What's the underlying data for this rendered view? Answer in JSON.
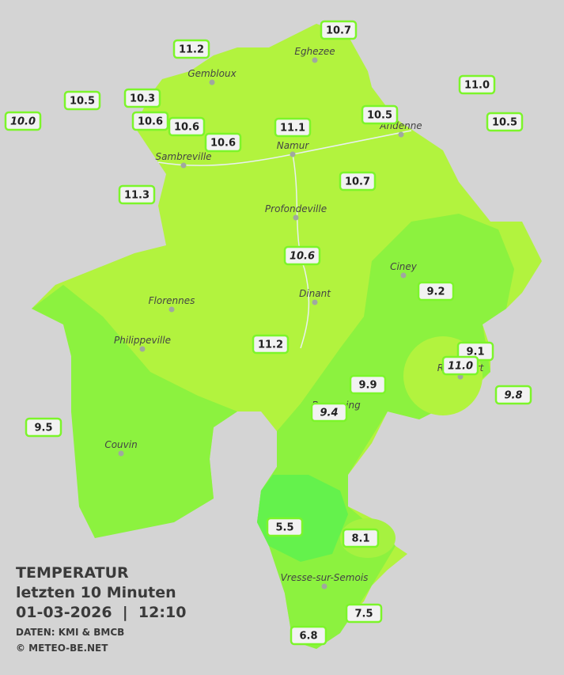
{
  "title": {
    "line1": "TEMPERATUR",
    "line2": "letzten 10 Minuten",
    "line3": "01-03-2026  |  12:10",
    "line4": "DATEN: KMI & BMCB",
    "line5": "© METEO-BE.NET"
  },
  "cities": [
    "Eghezee",
    "Gembloux",
    "Andenne",
    "Namur",
    "Sambreville",
    "Profondeville",
    "Ciney",
    "Dinant",
    "Florennes",
    "Philippeville",
    "Rochefort",
    "Beauraing",
    "Couvin",
    "Vresse-sur-Semois"
  ],
  "stations": [
    {
      "label": "10.7",
      "italic": false
    },
    {
      "label": "11.2",
      "italic": false
    },
    {
      "label": "10.5",
      "italic": false
    },
    {
      "label": "10.3",
      "italic": false
    },
    {
      "label": "10.0",
      "italic": true
    },
    {
      "label": "10.6",
      "italic": false
    },
    {
      "label": "10.6",
      "italic": false
    },
    {
      "label": "10.6",
      "italic": false
    },
    {
      "label": "11.1",
      "italic": false
    },
    {
      "label": "10.5",
      "italic": false
    },
    {
      "label": "11.0",
      "italic": false
    },
    {
      "label": "10.5",
      "italic": false
    },
    {
      "label": "10.7",
      "italic": false
    },
    {
      "label": "11.3",
      "italic": false
    },
    {
      "label": "10.6",
      "italic": true
    },
    {
      "label": "9.2",
      "italic": false
    },
    {
      "label": "11.2",
      "italic": false
    },
    {
      "label": "9.1",
      "italic": false
    },
    {
      "label": "11.0",
      "italic": true
    },
    {
      "label": "9.8",
      "italic": true
    },
    {
      "label": "9.9",
      "italic": false
    },
    {
      "label": "9.4",
      "italic": true
    },
    {
      "label": "9.5",
      "italic": false
    },
    {
      "label": "5.5",
      "italic": false
    },
    {
      "label": "8.1",
      "italic": false
    },
    {
      "label": "7.5",
      "italic": false
    },
    {
      "label": "6.8",
      "italic": false
    }
  ]
}
